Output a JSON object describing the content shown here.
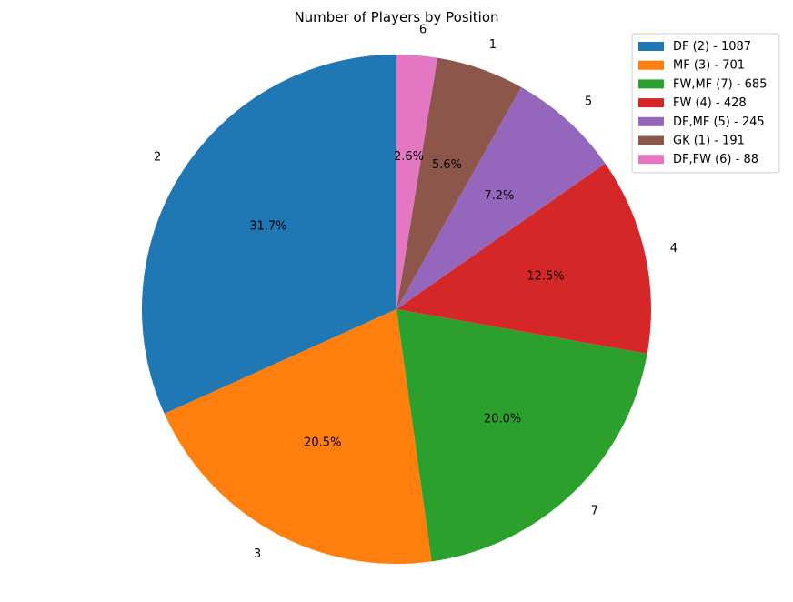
{
  "chart_data": {
    "type": "pie",
    "title": "Number of Players by Position",
    "slices": [
      {
        "id": "2",
        "label": "2",
        "legend": "DF (2) - 1087",
        "value": 1087,
        "pct_label": "31.7%",
        "color": "#1f77b4"
      },
      {
        "id": "3",
        "label": "3",
        "legend": "MF (3) - 701",
        "value": 701,
        "pct_label": "20.5%",
        "color": "#ff7f0e"
      },
      {
        "id": "7",
        "label": "7",
        "legend": "FW,MF (7) - 685",
        "value": 685,
        "pct_label": "20.0%",
        "color": "#2ca02c"
      },
      {
        "id": "4",
        "label": "4",
        "legend": "FW (4) - 428",
        "value": 428,
        "pct_label": "12.5%",
        "color": "#d62728"
      },
      {
        "id": "5",
        "label": "5",
        "legend": "DF,MF (5) - 245",
        "value": 245,
        "pct_label": "7.2%",
        "color": "#9467bd"
      },
      {
        "id": "1",
        "label": "1",
        "legend": "GK (1) - 191",
        "value": 191,
        "pct_label": "5.6%",
        "color": "#8c564b"
      },
      {
        "id": "6",
        "label": "6",
        "legend": "DF,FW (6) - 88",
        "value": 88,
        "pct_label": "2.6%",
        "color": "#e377c2"
      }
    ],
    "start_angle_deg": 90,
    "direction": "counterclockwise",
    "legend_position": "top-right"
  }
}
